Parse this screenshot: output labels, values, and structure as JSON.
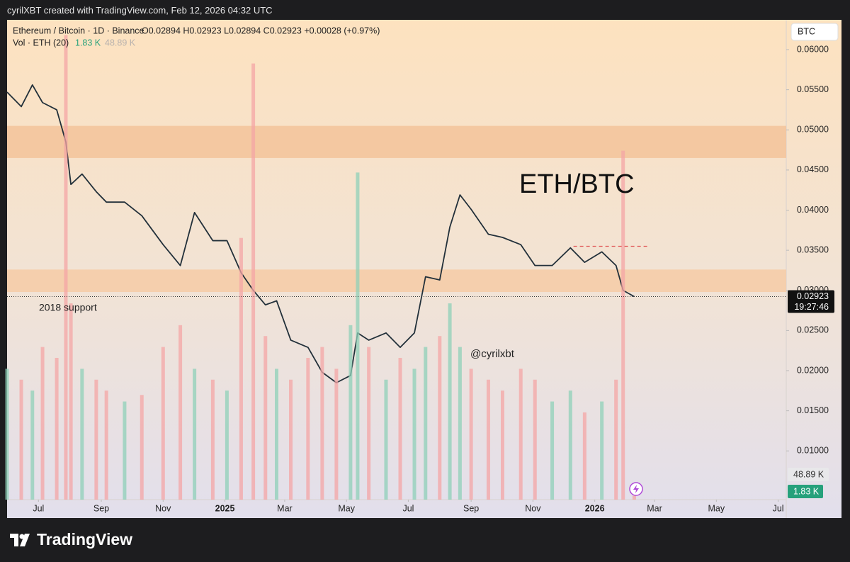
{
  "header": {
    "credit": "cyrilXBT created with TradingView.com, Feb 12, 2026 04:32 UTC",
    "ohlc": "O0.02894  H0.02923  L0.02894  C0.02923  +0.00028 (+0.97%)",
    "volume_label": "Vol · ETH (20)",
    "volume": "1.83 K",
    "volume_ma": "48.89 K",
    "currency": "BTC",
    "countdown": "19:27:46"
  },
  "footer": {
    "brand": "TradingView"
  },
  "chart_data": {
    "type": "line",
    "title": "Ethereum / Bitcoin · 1D · Binance",
    "annotations": [
      "ETH/BTC",
      "2018 support",
      "@cyrilxbt"
    ],
    "x": [
      -31,
      -17,
      -6,
      4,
      18,
      27,
      32,
      43,
      57,
      67,
      85,
      102,
      123,
      140,
      154,
      172,
      186,
      200,
      212,
      224,
      235,
      249,
      266,
      280,
      294,
      308,
      315,
      326,
      343,
      357,
      371,
      382,
      396,
      406,
      416,
      427,
      444,
      458,
      476,
      490,
      507,
      525,
      539,
      556,
      570,
      577,
      588
    ],
    "series": [
      {
        "name": "ETHBTC",
        "color": "#22303a",
        "values": [
          0.0547,
          0.0529,
          0.0556,
          0.0534,
          0.0525,
          0.0485,
          0.0432,
          0.0445,
          0.0423,
          0.041,
          0.041,
          0.0393,
          0.0357,
          0.0331,
          0.0397,
          0.0362,
          0.0362,
          0.0322,
          0.03,
          0.0282,
          0.0287,
          0.0238,
          0.0229,
          0.0198,
          0.0185,
          0.0194,
          0.0247,
          0.0238,
          0.0247,
          0.0229,
          0.0247,
          0.0317,
          0.0313,
          0.0379,
          0.0419,
          0.0401,
          0.037,
          0.0366,
          0.0357,
          0.0331,
          0.0331,
          0.0353,
          0.0335,
          0.0348,
          0.0331,
          0.03,
          0.02923
        ]
      },
      {
        "name": "Vol",
        "type": "bar",
        "axis": "y2",
        "color": "#8fd0b8",
        "down_color": "#f4a6a6",
        "values": [
          60,
          55,
          50,
          70,
          65,
          213,
          90,
          60,
          55,
          50,
          45,
          48,
          70,
          80,
          60,
          55,
          50,
          120,
          200,
          75,
          60,
          55,
          65,
          70,
          60,
          80,
          150,
          70,
          55,
          65,
          60,
          70,
          75,
          90,
          70,
          60,
          55,
          50,
          60,
          55,
          45,
          50,
          40,
          45,
          55,
          160,
          1.83
        ]
      }
    ],
    "last_price": 0.02923,
    "xlim": [
      -31,
      738
    ],
    "xticks": [
      {
        "value": 0,
        "label": "Jul"
      },
      {
        "value": 62,
        "label": "Sep"
      },
      {
        "value": 123,
        "label": "Nov"
      },
      {
        "value": 184,
        "label": "2025"
      },
      {
        "value": 243,
        "label": "Mar"
      },
      {
        "value": 304,
        "label": "May"
      },
      {
        "value": 365,
        "label": "Jul"
      },
      {
        "value": 427,
        "label": "Sep"
      },
      {
        "value": 488,
        "label": "Nov"
      },
      {
        "value": 549,
        "label": "2026"
      },
      {
        "value": 608,
        "label": "Mar"
      },
      {
        "value": 669,
        "label": "May"
      },
      {
        "value": 730,
        "label": "Jul"
      }
    ],
    "ylim": [
      0.00393,
      0.06371
    ],
    "yticks": [
      {
        "value": 0.06,
        "label": "0.06000"
      },
      {
        "value": 0.055,
        "label": "0.05500"
      },
      {
        "value": 0.05,
        "label": "0.05000"
      },
      {
        "value": 0.045,
        "label": "0.04500"
      },
      {
        "value": 0.04,
        "label": "0.04000"
      },
      {
        "value": 0.035,
        "label": "0.03500"
      },
      {
        "value": 0.03,
        "label": "0.03000"
      },
      {
        "value": 0.025,
        "label": "0.02500"
      },
      {
        "value": 0.02,
        "label": "0.02000"
      },
      {
        "value": 0.015,
        "label": "0.01500"
      },
      {
        "value": 0.01,
        "label": "0.01000"
      }
    ],
    "y2lim": [
      0,
      220
    ],
    "zones": [
      {
        "from": 0.0465,
        "to": 0.0505,
        "color": "#f3c39a"
      },
      {
        "from": 0.0298,
        "to": 0.0326,
        "color": "#f6cba6"
      }
    ],
    "levels": [
      {
        "value": 0.0355,
        "from": 528,
        "to": 603,
        "color": "#e05555"
      }
    ]
  }
}
